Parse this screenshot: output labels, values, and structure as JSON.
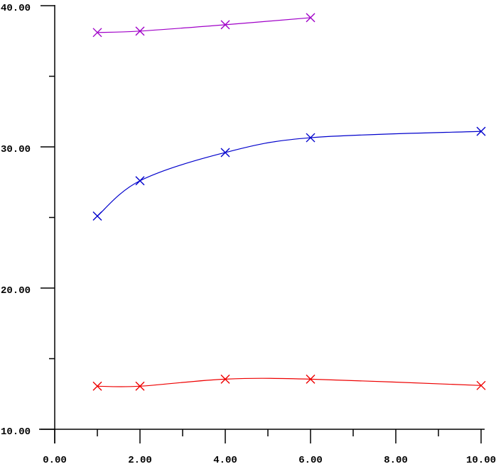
{
  "chart_data": {
    "type": "line",
    "title": "",
    "xlabel": "",
    "ylabel": "",
    "xlim": [
      0,
      10
    ],
    "ylim": [
      10,
      40
    ],
    "grid": false,
    "legend": null,
    "marker": "x",
    "background": "#ffffff",
    "axis_color": "#000000",
    "x_major_ticks": [
      0,
      2,
      4,
      6,
      8,
      10
    ],
    "x_minor_ticks": [
      1,
      3,
      5,
      7,
      9
    ],
    "y_major_ticks": [
      10,
      20,
      30,
      40
    ],
    "y_minor_ticks": [
      15,
      25,
      35
    ],
    "x_tick_labels": [
      "0.00",
      "2.00",
      "4.00",
      "6.00",
      "8.00",
      "10.00"
    ],
    "y_tick_labels": [
      "10.00",
      "20.00",
      "30.00",
      "40.00"
    ],
    "series": [
      {
        "name": "magenta-curve",
        "color": "#A000C8",
        "x": [
          1,
          2,
          4,
          6
        ],
        "y": [
          38.1,
          38.2,
          38.65,
          39.15
        ]
      },
      {
        "name": "blue-curve",
        "color": "#0000CC",
        "x": [
          1,
          2,
          4,
          6,
          10
        ],
        "y": [
          25.1,
          27.6,
          29.6,
          30.65,
          31.1
        ]
      },
      {
        "name": "red-curve",
        "color": "#EE0000",
        "x": [
          1,
          2,
          4,
          6,
          10
        ],
        "y": [
          13.05,
          13.05,
          13.55,
          13.55,
          13.1
        ]
      }
    ]
  }
}
